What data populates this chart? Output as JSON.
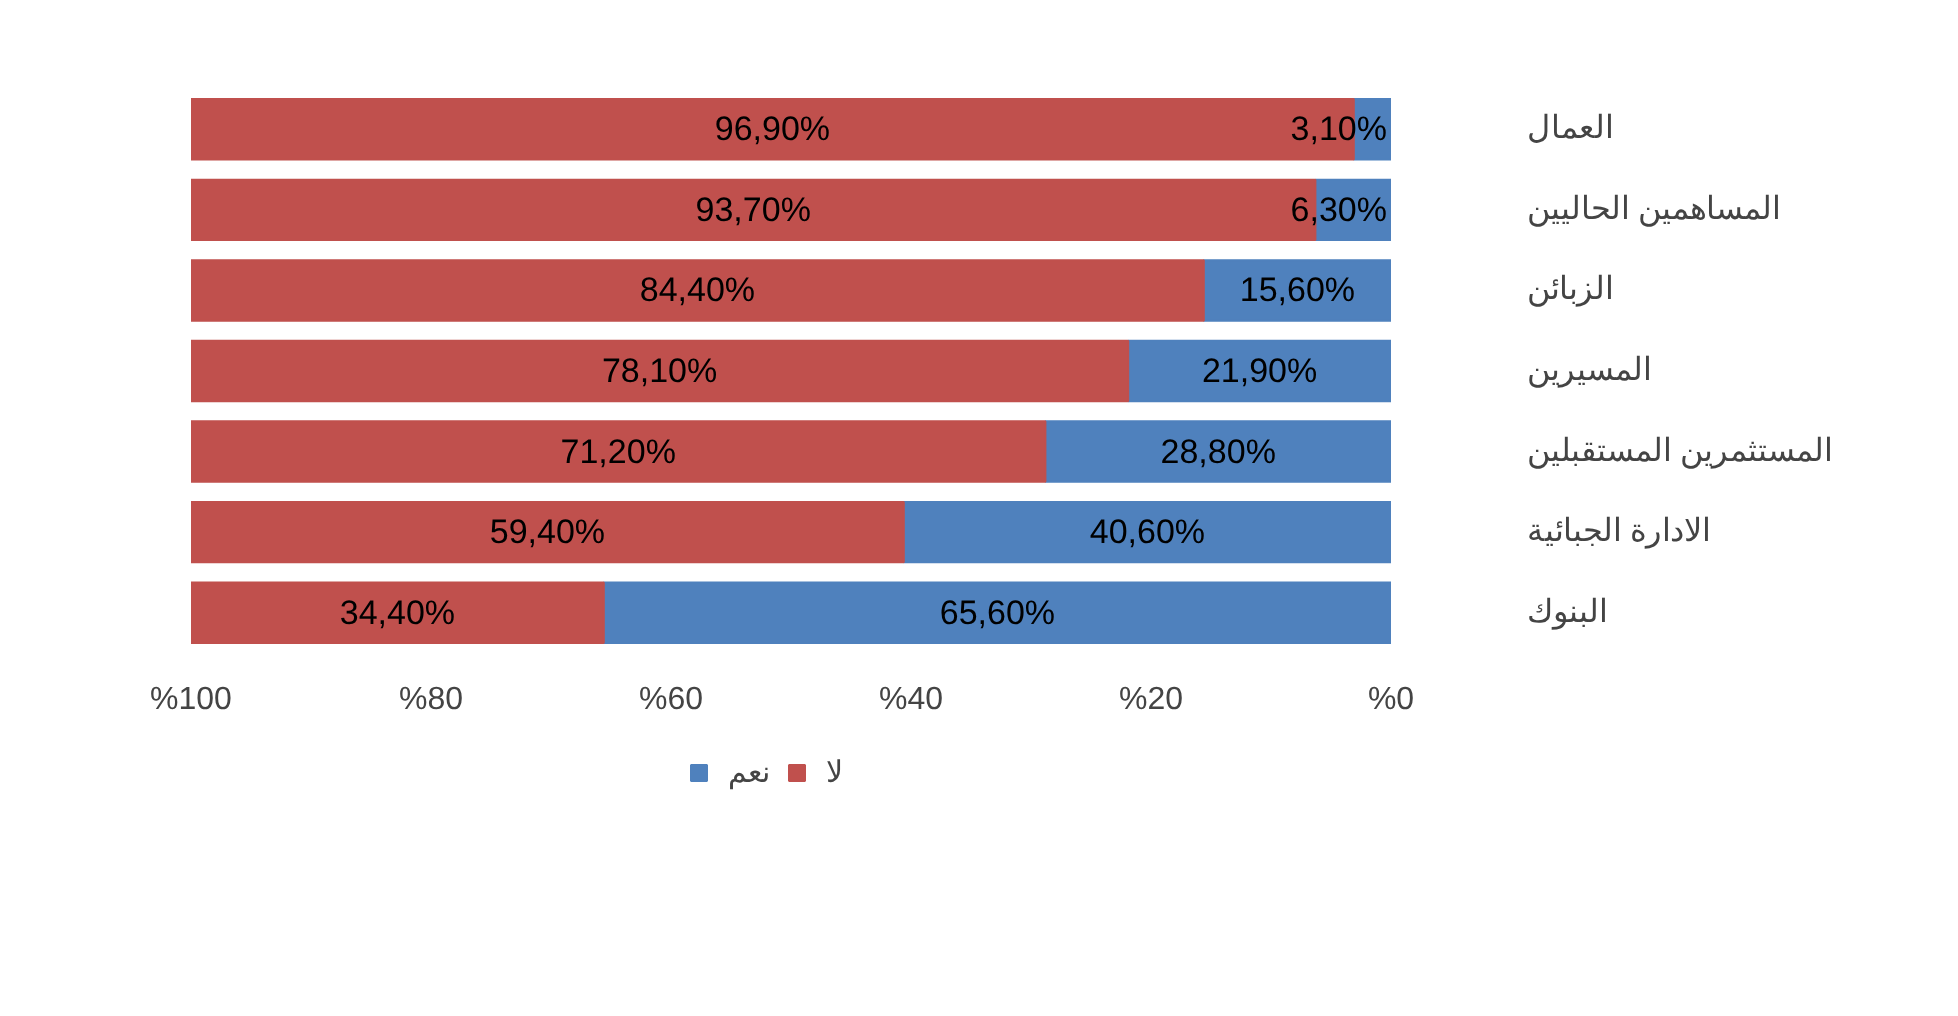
{
  "chart_data": {
    "type": "bar",
    "orientation": "horizontal",
    "stacked": true,
    "categories": [
      "العمال",
      "المساهمين الحاليين",
      "الزبائن",
      "المسيرين",
      "المستثمرين المستقبلين",
      "الادارة الجبائية",
      "البنوك"
    ],
    "series": [
      {
        "name": "نعم",
        "color": "#4f81bd",
        "values": [
          3.1,
          6.3,
          15.6,
          21.9,
          28.8,
          40.6,
          65.6
        ],
        "value_labels": [
          "3,10%",
          "6,30%",
          "15,60%",
          "21,90%",
          "28,80%",
          "40,60%",
          "65,60%"
        ]
      },
      {
        "name": "لا",
        "color": "#c0504d",
        "values": [
          96.9,
          93.7,
          84.4,
          78.1,
          71.2,
          59.4,
          34.4
        ],
        "value_labels": [
          "96,90%",
          "93,70%",
          "84,40%",
          "78,10%",
          "71,20%",
          "59,40%",
          "34,40%"
        ]
      }
    ],
    "xlim": [
      100,
      0
    ],
    "xticks": [
      {
        "value": 100,
        "label": "%100"
      },
      {
        "value": 80,
        "label": "%80"
      },
      {
        "value": 60,
        "label": "%60"
      },
      {
        "value": 40,
        "label": "%40"
      },
      {
        "value": 20,
        "label": "%20"
      },
      {
        "value": 0,
        "label": "%0"
      }
    ],
    "grid": false,
    "legend": "bottom"
  }
}
